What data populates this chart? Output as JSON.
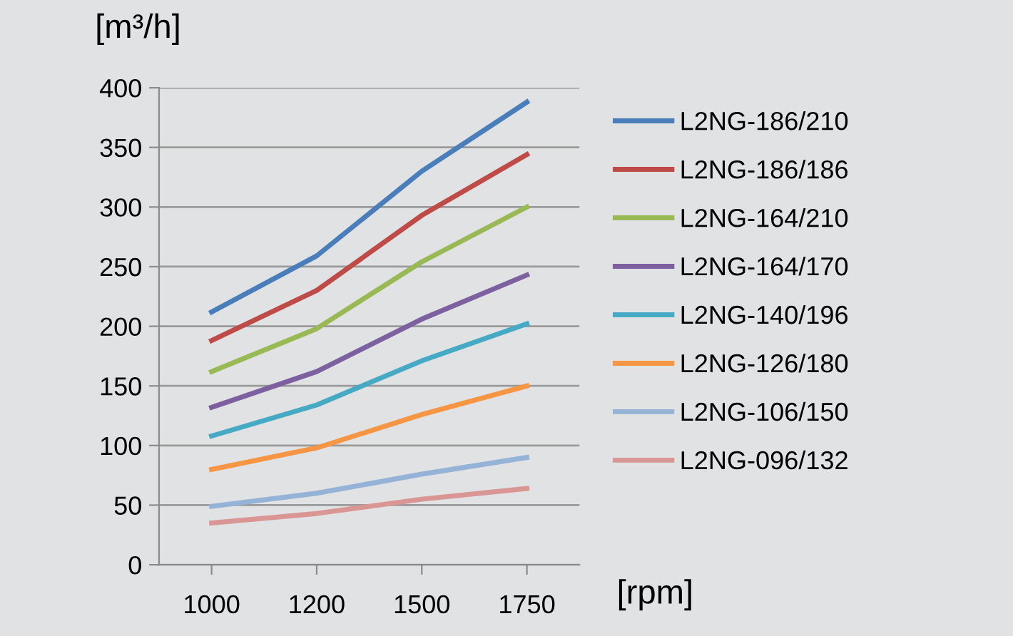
{
  "chart_data": {
    "type": "line",
    "ylabel": "[m³/h]",
    "xlabel": "[rpm]",
    "categories": [
      "1000",
      "1200",
      "1500",
      "1750"
    ],
    "series": [
      {
        "name": "L2NG-186/210",
        "color": "#4a7ebb",
        "values": [
          212,
          259,
          330,
          388
        ]
      },
      {
        "name": "L2NG-186/186",
        "color": "#be4b48",
        "values": [
          188,
          230,
          293,
          344
        ]
      },
      {
        "name": "L2NG-164/210",
        "color": "#98b954",
        "values": [
          162,
          198,
          254,
          300
        ]
      },
      {
        "name": "L2NG-164/170",
        "color": "#7d60a0",
        "values": [
          132,
          162,
          206,
          243
        ]
      },
      {
        "name": "L2NG-140/196",
        "color": "#46aac5",
        "values": [
          108,
          134,
          171,
          202
        ]
      },
      {
        "name": "L2NG-126/180",
        "color": "#f69544",
        "values": [
          80,
          98,
          126,
          150
        ]
      },
      {
        "name": "L2NG-106/150",
        "color": "#95b3d7",
        "values": [
          49,
          60,
          76,
          90
        ]
      },
      {
        "name": "L2NG-096/132",
        "color": "#d99694",
        "values": [
          35,
          43,
          55,
          64
        ]
      }
    ],
    "ylim": [
      0,
      400
    ],
    "yticks": [
      0,
      50,
      100,
      150,
      200,
      250,
      300,
      350,
      400
    ],
    "grid": "y",
    "legend": "right",
    "marker": "none",
    "line_style": "solid"
  }
}
